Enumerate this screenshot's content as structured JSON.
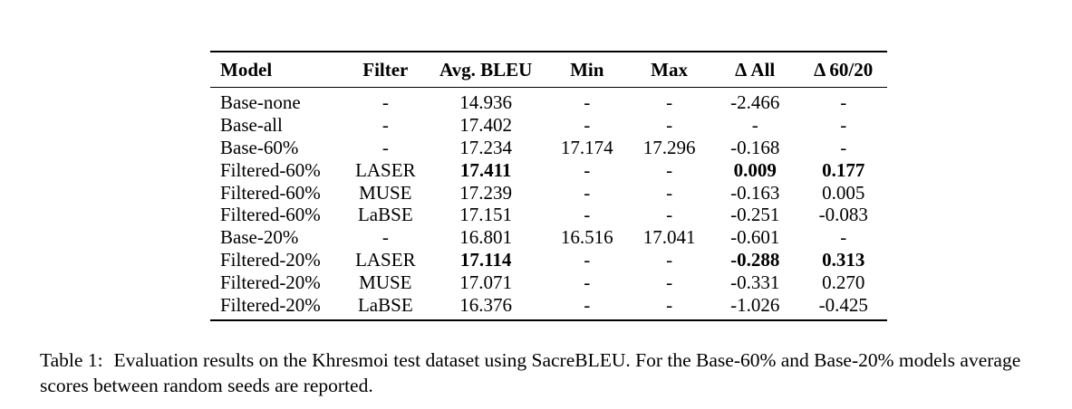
{
  "table": {
    "headers": [
      "Model",
      "Filter",
      "Avg. BLEU",
      "Min",
      "Max",
      "Δ All",
      "Δ 60/20"
    ],
    "rows": [
      {
        "model": "Base-none",
        "filter": "-",
        "bleu": "14.936",
        "min": "-",
        "max": "-",
        "d_all": "-2.466",
        "d_6020": "-",
        "bold": []
      },
      {
        "model": "Base-all",
        "filter": "-",
        "bleu": "17.402",
        "min": "-",
        "max": "-",
        "d_all": "-",
        "d_6020": "-",
        "bold": []
      },
      {
        "model": "Base-60%",
        "filter": "-",
        "bleu": "17.234",
        "min": "17.174",
        "max": "17.296",
        "d_all": "-0.168",
        "d_6020": "-",
        "bold": []
      },
      {
        "model": "Filtered-60%",
        "filter": "LASER",
        "bleu": "17.411",
        "min": "-",
        "max": "-",
        "d_all": "0.009",
        "d_6020": "0.177",
        "bold": [
          "bleu",
          "d_all",
          "d_6020"
        ]
      },
      {
        "model": "Filtered-60%",
        "filter": "MUSE",
        "bleu": "17.239",
        "min": "-",
        "max": "-",
        "d_all": "-0.163",
        "d_6020": "0.005",
        "bold": []
      },
      {
        "model": "Filtered-60%",
        "filter": "LaBSE",
        "bleu": "17.151",
        "min": "-",
        "max": "-",
        "d_all": "-0.251",
        "d_6020": "-0.083",
        "bold": []
      },
      {
        "model": "Base-20%",
        "filter": "-",
        "bleu": "16.801",
        "min": "16.516",
        "max": "17.041",
        "d_all": "-0.601",
        "d_6020": "-",
        "bold": []
      },
      {
        "model": "Filtered-20%",
        "filter": "LASER",
        "bleu": "17.114",
        "min": "-",
        "max": "-",
        "d_all": "-0.288",
        "d_6020": "0.313",
        "bold": [
          "bleu",
          "d_all",
          "d_6020"
        ]
      },
      {
        "model": "Filtered-20%",
        "filter": "MUSE",
        "bleu": "17.071",
        "min": "-",
        "max": "-",
        "d_all": "-0.331",
        "d_6020": "0.270",
        "bold": []
      },
      {
        "model": "Filtered-20%",
        "filter": "LaBSE",
        "bleu": "16.376",
        "min": "-",
        "max": "-",
        "d_all": "-1.026",
        "d_6020": "-0.425",
        "bold": []
      }
    ]
  },
  "caption": {
    "label": "Table 1:",
    "text": "Evaluation results on the Khresmoi test dataset using SacreBLEU. For the Base-60% and Base-20% models average scores between random seeds are reported."
  }
}
